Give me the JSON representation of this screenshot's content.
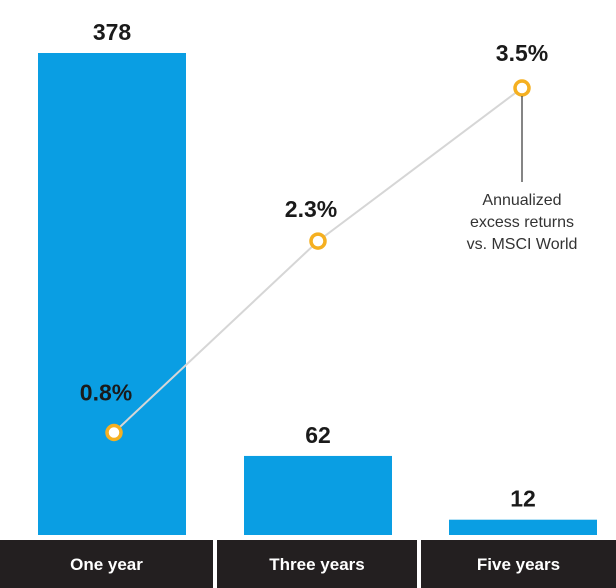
{
  "chart_data": {
    "type": "bar",
    "categories": [
      "One year",
      "Three years",
      "Five years"
    ],
    "series": [
      {
        "type": "bar",
        "values": [
          378,
          62,
          12
        ]
      },
      {
        "type": "line",
        "values": [
          0.8,
          2.3,
          3.5
        ],
        "labels": [
          "0.8%",
          "2.3%",
          "3.5%"
        ]
      }
    ],
    "annotation": {
      "lines": [
        "Annualized",
        "excess returns",
        "vs. MSCI World"
      ],
      "target_index": 2
    },
    "colors": {
      "bar": "#0a9ee3",
      "category_band": "#231f20",
      "line": "#d6d6d6",
      "marker_stroke": "#f5b021",
      "marker_fill": "#ffffff",
      "annotation_line": "#333333"
    }
  }
}
